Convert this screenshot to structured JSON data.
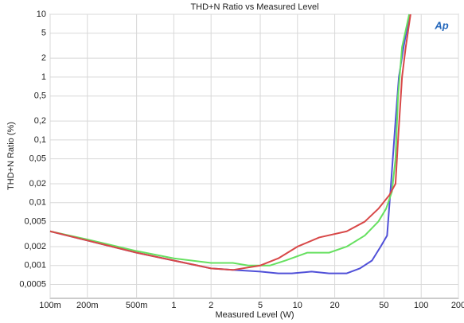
{
  "chart_data": {
    "type": "line",
    "title": "THD+N Ratio vs Measured Level",
    "xlabel": "Measured Level (W)",
    "ylabel": "THD+N Ratio (%)",
    "logo": "Ap",
    "xscale": "log",
    "yscale": "log",
    "grid": true,
    "xlim": [
      0.1,
      200
    ],
    "ylim": [
      0.0003,
      10
    ],
    "xticks": [
      {
        "value": 0.1,
        "label": "100m"
      },
      {
        "value": 0.2,
        "label": "200m"
      },
      {
        "value": 0.5,
        "label": "500m"
      },
      1,
      2,
      5,
      10,
      20,
      50,
      100,
      200
    ],
    "yticks": [
      10,
      5,
      2,
      1,
      {
        "value": 0.5,
        "label": "0,5"
      },
      {
        "value": 0.2,
        "label": "0,2"
      },
      {
        "value": 0.1,
        "label": "0,1"
      },
      {
        "value": 0.05,
        "label": "0,05"
      },
      {
        "value": 0.02,
        "label": "0,02"
      },
      {
        "value": 0.01,
        "label": "0,01"
      },
      {
        "value": 0.005,
        "label": "0,005"
      },
      {
        "value": 0.002,
        "label": "0,002"
      },
      {
        "value": 0.001,
        "label": "0,001"
      },
      {
        "value": 0.0005,
        "label": "0,0005"
      }
    ],
    "series": [
      {
        "color": "#5050d8",
        "x": [
          0.1,
          0.2,
          0.5,
          1,
          2,
          3,
          5,
          7,
          9,
          13,
          18,
          25,
          32,
          40,
          47,
          53,
          57,
          62,
          66,
          72,
          78,
          80
        ],
        "values": [
          0.0035,
          0.0025,
          0.0016,
          0.0012,
          0.0009,
          0.00085,
          0.0008,
          0.00075,
          0.00075,
          0.0008,
          0.00075,
          0.00075,
          0.0009,
          0.0012,
          0.002,
          0.003,
          0.02,
          0.2,
          1,
          3,
          7,
          10
        ]
      },
      {
        "color": "#66e060",
        "x": [
          0.1,
          0.2,
          0.5,
          1,
          2,
          3,
          4,
          6,
          8,
          12,
          18,
          25,
          35,
          45,
          52,
          58,
          62,
          65,
          70,
          80
        ],
        "values": [
          0.0035,
          0.0026,
          0.0017,
          0.0013,
          0.0011,
          0.0011,
          0.001,
          0.001,
          0.0012,
          0.0016,
          0.0016,
          0.002,
          0.003,
          0.005,
          0.008,
          0.015,
          0.05,
          0.5,
          3,
          10
        ]
      },
      {
        "color": "#d84848",
        "x": [
          0.1,
          0.2,
          0.5,
          1,
          2,
          3,
          5,
          7,
          10,
          15,
          25,
          35,
          45,
          55,
          62,
          65,
          70,
          75,
          82
        ],
        "values": [
          0.0035,
          0.0025,
          0.0016,
          0.0012,
          0.0009,
          0.00085,
          0.001,
          0.0013,
          0.002,
          0.0028,
          0.0035,
          0.005,
          0.008,
          0.013,
          0.02,
          0.1,
          1,
          3,
          10
        ]
      }
    ]
  }
}
